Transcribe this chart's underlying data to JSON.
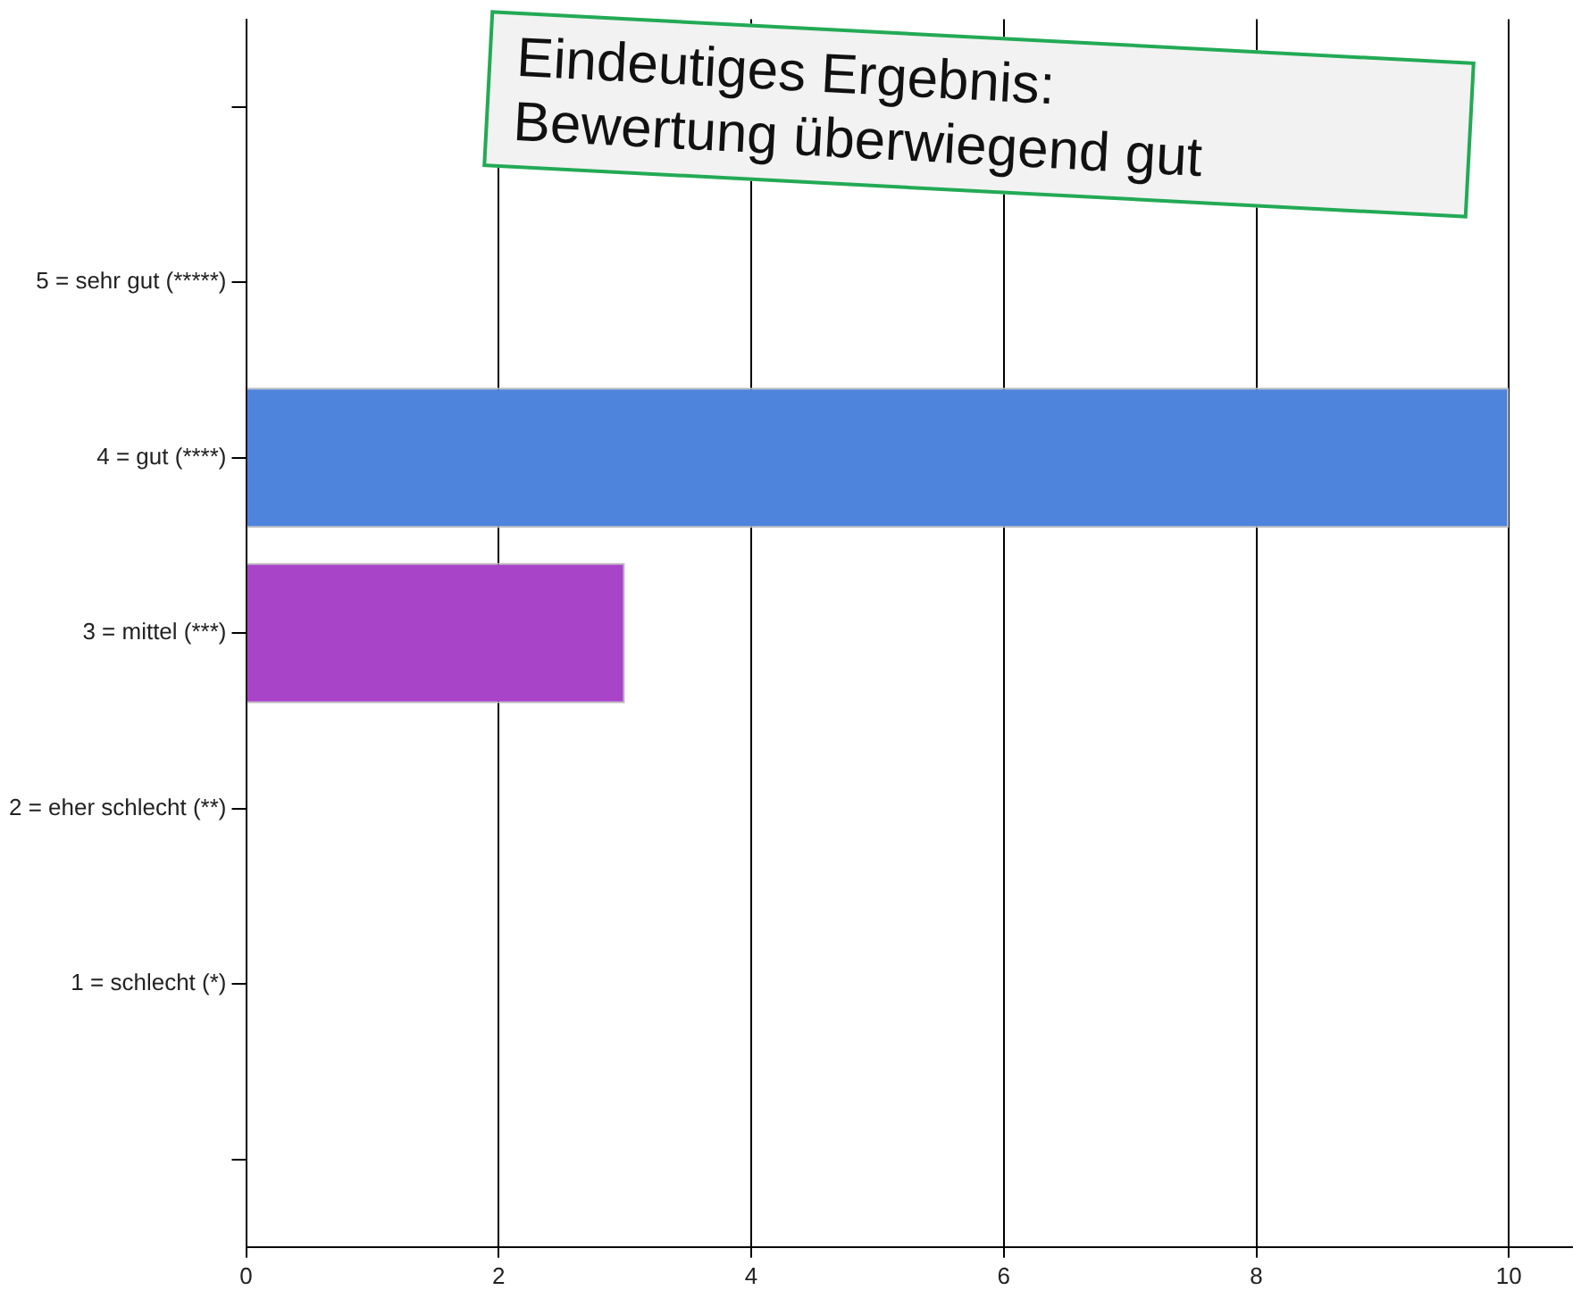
{
  "chart_data": {
    "type": "bar",
    "orientation": "horizontal",
    "categories": [
      "5 = sehr gut (*****)",
      "4 = gut (****)",
      "3 = mittel (***)",
      "2 = eher schlecht (**)",
      "1 = schlecht (*)"
    ],
    "values": [
      0,
      10,
      3,
      0,
      0
    ],
    "colors": [
      "#4f84dc",
      "#4f84dc",
      "#a844c8",
      "#a844c8",
      "#a844c8"
    ],
    "xlim": [
      0,
      10.5
    ],
    "xticks": [
      0,
      2,
      4,
      6,
      8,
      10
    ],
    "grid": "x",
    "annotations": [
      "Eindeutiges Ergebnis:\nBewertung überwiegend gut"
    ]
  }
}
